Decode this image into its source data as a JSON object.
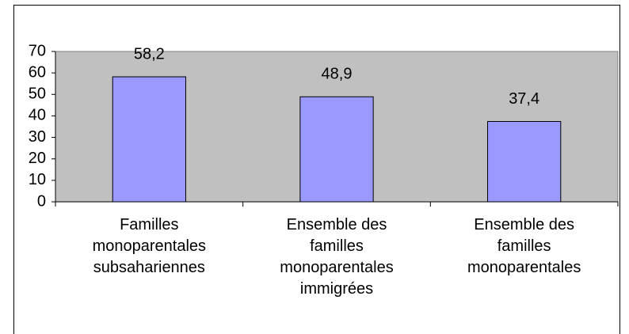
{
  "chart_data": {
    "type": "bar",
    "categories": [
      "Familles monoparentales subsahariennes",
      "Ensemble des familles monoparentales immigrées",
      "Ensemble des familles monoparentales"
    ],
    "values": [
      58.2,
      48.9,
      37.4
    ],
    "value_labels": [
      "58,2",
      "48,9",
      "37,4"
    ],
    "color": "#9999ff",
    "plot_background": "#c0c0c0",
    "ylim": [
      0,
      70
    ],
    "yticks": [
      0,
      10,
      20,
      30,
      40,
      50,
      60,
      70
    ],
    "grid": false
  }
}
